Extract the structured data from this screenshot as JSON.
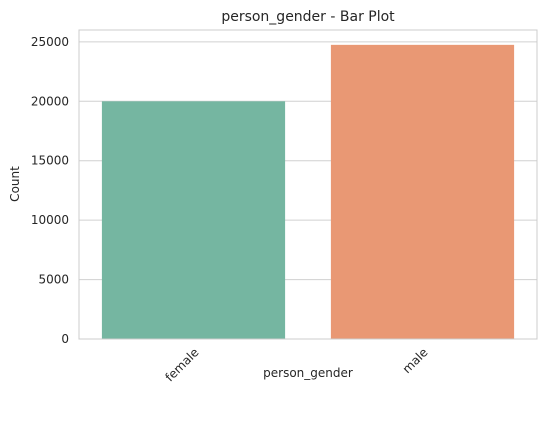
{
  "chart_data": {
    "type": "bar",
    "title": "person_gender - Bar Plot",
    "xlabel": "person_gender",
    "ylabel": "Count",
    "categories": [
      "female",
      "male"
    ],
    "values": [
      20000,
      24750
    ],
    "ylim": [
      0,
      26000
    ],
    "yticks": [
      0,
      5000,
      10000,
      15000,
      20000,
      25000
    ],
    "grid": true,
    "colors": [
      "#75b6a1",
      "#e99874"
    ],
    "frame_color": "#cccccc",
    "grid_color": "#d0d0d0"
  }
}
